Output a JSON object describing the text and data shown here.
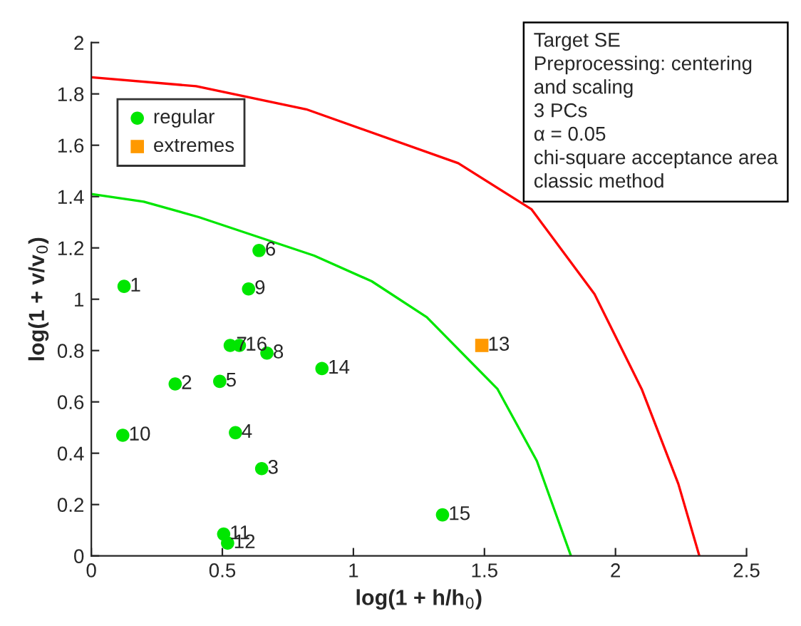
{
  "chart_data": {
    "type": "scatter",
    "xlabel": "log(1 + h/h$_{0}$)",
    "ylabel": "log(1 + v/v$_{0}$)",
    "xlim": [
      0,
      2.5
    ],
    "ylim": [
      0,
      2
    ],
    "xticks": [
      0,
      0.5,
      1,
      1.5,
      2,
      2.5
    ],
    "yticks": [
      0,
      0.2,
      0.4,
      0.6,
      0.8,
      1,
      1.2,
      1.4,
      1.6,
      1.8,
      2
    ],
    "grid": false,
    "legend": "top left",
    "series": [
      {
        "name": "regular",
        "color": "#00e600",
        "marker": "circle",
        "x": [
          0.125,
          0.32,
          0.65,
          0.55,
          0.49,
          0.64,
          0.53,
          0.67,
          0.6,
          0.12,
          0.505,
          0.52,
          0.88,
          1.34,
          0.565
        ],
        "values": [
          1.05,
          0.67,
          0.34,
          0.48,
          0.68,
          1.19,
          0.82,
          0.79,
          1.04,
          0.47,
          0.085,
          0.05,
          0.73,
          0.16,
          0.82
        ]
      },
      {
        "name": "extremes",
        "color": "#ff9900",
        "marker": "square",
        "x": [
          1.49
        ],
        "values": [
          0.82
        ]
      },
      {
        "type": "line",
        "color": "#00e600",
        "marker": "none",
        "x": [
          0,
          0.2,
          0.41,
          0.85,
          1.07,
          1.28,
          1.55,
          1.7,
          1.83
        ],
        "values": [
          1.41,
          1.38,
          1.32,
          1.17,
          1.07,
          0.93,
          0.65,
          0.37,
          0
        ]
      },
      {
        "type": "line",
        "color": "#ff0000",
        "marker": "none",
        "x": [
          0,
          0.4,
          0.82,
          1.4,
          1.68,
          1.92,
          2.1,
          2.24,
          2.32
        ],
        "values": [
          1.865,
          1.83,
          1.74,
          1.53,
          1.35,
          1.02,
          0.65,
          0.28,
          0
        ]
      }
    ],
    "annotations": [
      {
        "text": "1",
        "x": 0.125,
        "y": 1.05
      },
      {
        "text": "2",
        "x": 0.32,
        "y": 0.67
      },
      {
        "text": "3",
        "x": 0.65,
        "y": 0.34
      },
      {
        "text": "4",
        "x": 0.55,
        "y": 0.48
      },
      {
        "text": "5",
        "x": 0.49,
        "y": 0.68
      },
      {
        "text": "6",
        "x": 0.64,
        "y": 1.19
      },
      {
        "text": "7",
        "x": 0.53,
        "y": 0.82
      },
      {
        "text": "8",
        "x": 0.67,
        "y": 0.79
      },
      {
        "text": "9",
        "x": 0.6,
        "y": 1.04
      },
      {
        "text": "10",
        "x": 0.12,
        "y": 0.47
      },
      {
        "text": "11",
        "x": 0.505,
        "y": 0.085
      },
      {
        "text": "12",
        "x": 0.52,
        "y": 0.05
      },
      {
        "text": "13",
        "x": 1.49,
        "y": 0.82
      },
      {
        "text": "14",
        "x": 0.88,
        "y": 0.73
      },
      {
        "text": "15",
        "x": 1.34,
        "y": 0.16
      },
      {
        "text": "16",
        "x": 0.565,
        "y": 0.82
      },
      "Target SE\nPreprocessing: centering\nand scaling\n3 PCs\nα = 0.05\nchi-square acceptance area\nclassic method"
    ]
  }
}
